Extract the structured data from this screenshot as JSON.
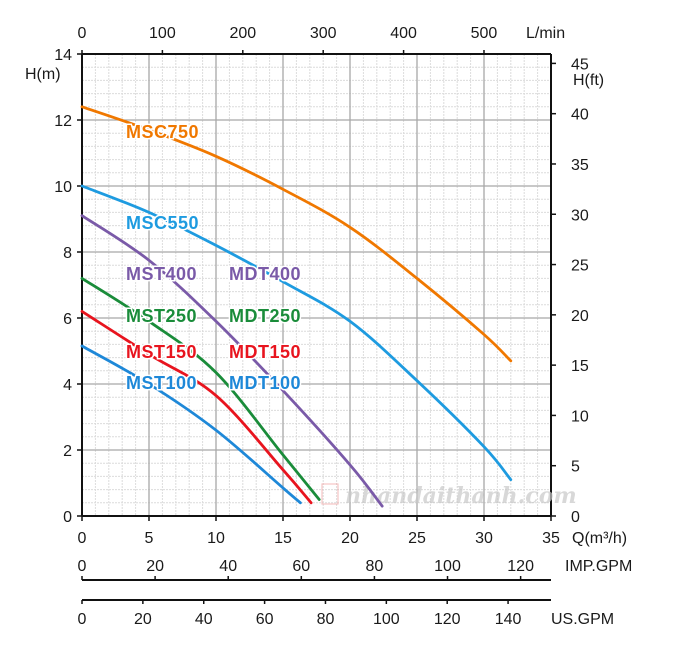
{
  "chart_data": {
    "type": "line",
    "title": "",
    "xlabel": "Q(m³/h)",
    "ylabel": "H(m)",
    "xlim": [
      0,
      35
    ],
    "ylim": [
      0,
      14
    ],
    "grid": true,
    "x_ticks": [
      0,
      5,
      10,
      15,
      20,
      25,
      30,
      35
    ],
    "y_ticks": [
      0,
      2,
      4,
      6,
      8,
      10,
      12,
      14
    ],
    "secondary_axes": {
      "top": {
        "label": "L/min",
        "ticks": [
          0,
          100,
          200,
          300,
          400,
          500
        ],
        "scale_per_unit_q": 16.667
      },
      "right": {
        "label": "H(ft)",
        "ticks": [
          0,
          5,
          10,
          15,
          20,
          25,
          30,
          35,
          40,
          45
        ],
        "scale_per_unit_h": 3.281
      },
      "imp_gpm": {
        "label": "IMP.GPM",
        "ticks": [
          0,
          20,
          40,
          60,
          80,
          100,
          120
        ],
        "scale_per_unit_q": 3.666
      },
      "us_gpm": {
        "label": "US.GPM",
        "ticks": [
          0,
          20,
          40,
          60,
          80,
          100,
          120,
          140
        ],
        "scale_per_unit_q": 4.403
      }
    },
    "series": [
      {
        "name": "MSC750",
        "labels": [
          "MSC750"
        ],
        "color": "#f07800",
        "x": [
          0,
          5,
          10,
          15,
          20,
          25,
          30,
          32
        ],
        "y": [
          12.4,
          11.7,
          10.9,
          9.9,
          8.75,
          7.2,
          5.5,
          4.7
        ]
      },
      {
        "name": "MSC550",
        "labels": [
          "MSC550"
        ],
        "color": "#1e9be0",
        "x": [
          0,
          5,
          10,
          15,
          20,
          25,
          30,
          32
        ],
        "y": [
          10.0,
          9.2,
          8.2,
          7.1,
          5.9,
          4.1,
          2.1,
          1.1
        ]
      },
      {
        "name": "MST400 / MDT400",
        "labels": [
          "MST400",
          "MDT400"
        ],
        "color": "#7a5aa8",
        "x": [
          0,
          5,
          10,
          15,
          20,
          22.4
        ],
        "y": [
          9.1,
          7.75,
          5.9,
          3.8,
          1.55,
          0.3
        ]
      },
      {
        "name": "MST250 / MDT250",
        "labels": [
          "MST250",
          "MDT250"
        ],
        "color": "#1a8c3a",
        "x": [
          0,
          5,
          10,
          15,
          17.7
        ],
        "y": [
          7.2,
          5.9,
          4.35,
          1.85,
          0.5
        ]
      },
      {
        "name": "MST150 / MDT150",
        "labels": [
          "MST150",
          "MDT150"
        ],
        "color": "#e8141e",
        "x": [
          0,
          5,
          10,
          15,
          17.1
        ],
        "y": [
          6.2,
          4.9,
          3.65,
          1.4,
          0.4
        ]
      },
      {
        "name": "MST100 / MDT100",
        "labels": [
          "MST100",
          "MDT100"
        ],
        "color": "#1e88d8",
        "x": [
          0,
          5,
          10,
          15,
          16.3
        ],
        "y": [
          5.15,
          4.0,
          2.6,
          0.85,
          0.4
        ]
      }
    ],
    "watermark": "nhandaithanh.com"
  }
}
